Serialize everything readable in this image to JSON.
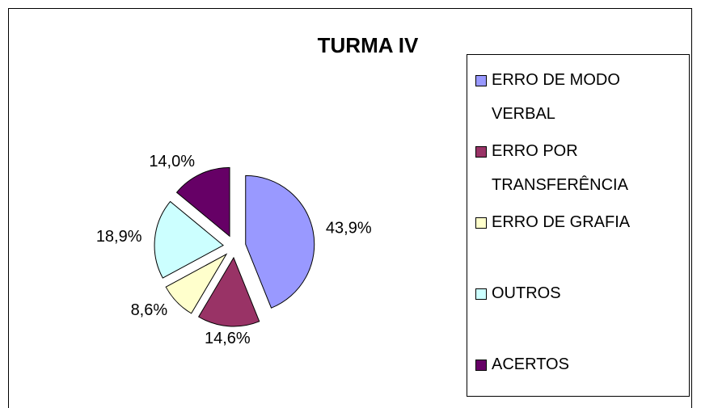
{
  "chart_data": {
    "type": "pie",
    "title": "TURMA IV",
    "categories": [
      "ERRO DE MODO VERBAL",
      "ERRO POR TRANSFERÊNCIA",
      "ERRO DE GRAFIA",
      "OUTROS",
      "ACERTOS"
    ],
    "values": [
      43.9,
      14.6,
      8.6,
      18.9,
      14.0
    ],
    "value_labels": [
      "43,9%",
      "14,6%",
      "8,6%",
      "18,9%",
      "14,0%"
    ],
    "colors": [
      "#9999ff",
      "#993366",
      "#ffffcc",
      "#ccffff",
      "#660066"
    ],
    "legend": "right"
  }
}
